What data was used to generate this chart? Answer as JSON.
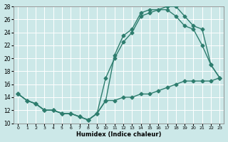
{
  "xlabel": "Humidex (Indice chaleur)",
  "bg_color": "#cce8e8",
  "grid_color": "#b0d8d8",
  "line_color": "#2e7d6e",
  "line1_y": [
    14.5,
    13.5,
    13.0,
    12.0,
    12.0,
    11.5,
    11.5,
    11.0,
    10.5,
    11.5,
    13.5,
    13.5,
    14.0,
    14.0,
    14.5,
    14.5,
    15.0,
    15.5,
    16.0,
    16.5,
    16.5,
    16.5,
    16.5,
    17.0
  ],
  "line2_y": [
    14.5,
    13.5,
    13.0,
    12.0,
    12.0,
    11.5,
    11.5,
    11.0,
    10.5,
    11.5,
    13.5,
    20.5,
    23.5,
    24.5,
    27.0,
    27.5,
    27.5,
    28.0,
    28.0,
    26.5,
    25.0,
    24.5,
    19.0,
    17.0
  ],
  "line3_y": [
    14.5,
    13.5,
    13.0,
    12.0,
    12.0,
    11.5,
    11.5,
    11.0,
    10.5,
    11.5,
    17.0,
    20.0,
    22.5,
    24.0,
    26.5,
    27.0,
    27.5,
    27.5,
    26.5,
    25.0,
    24.5,
    22.0,
    19.0,
    17.0
  ],
  "x": [
    0,
    1,
    2,
    3,
    4,
    5,
    6,
    7,
    8,
    9,
    10,
    11,
    12,
    13,
    14,
    15,
    16,
    17,
    18,
    19,
    20,
    21,
    22,
    23
  ],
  "ylim": [
    10,
    28
  ],
  "xlim_min": -0.5,
  "xlim_max": 23.5,
  "yticks": [
    10,
    12,
    14,
    16,
    18,
    20,
    22,
    24,
    26,
    28
  ],
  "xticks": [
    0,
    1,
    2,
    3,
    4,
    5,
    6,
    7,
    8,
    9,
    10,
    11,
    12,
    13,
    14,
    15,
    16,
    17,
    18,
    19,
    20,
    21,
    22,
    23
  ],
  "marker": "D",
  "markersize": 2.5,
  "linewidth": 1.0
}
